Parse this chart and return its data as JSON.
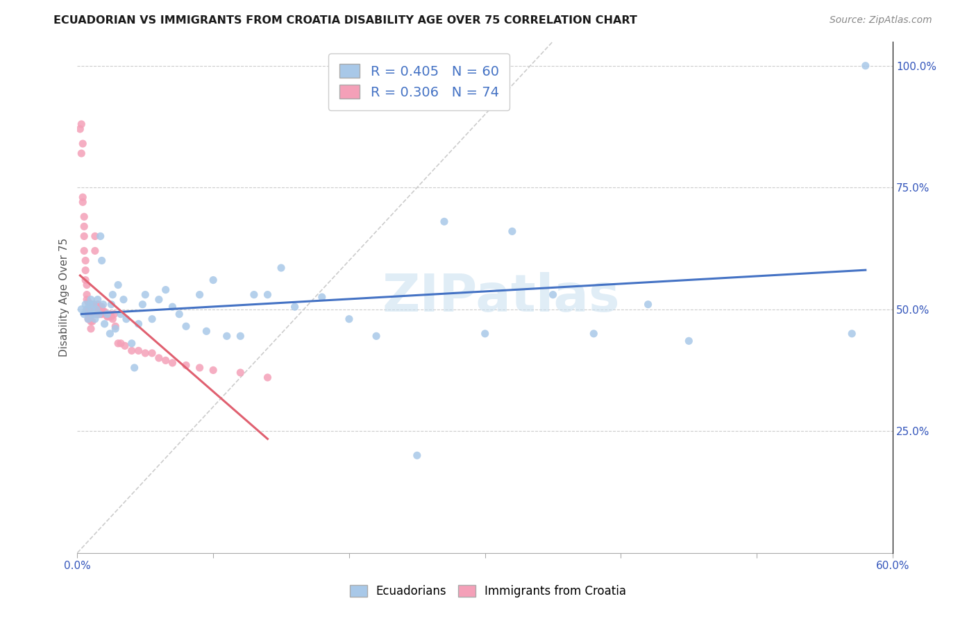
{
  "title": "ECUADORIAN VS IMMIGRANTS FROM CROATIA DISABILITY AGE OVER 75 CORRELATION CHART",
  "source": "Source: ZipAtlas.com",
  "ylabel": "Disability Age Over 75",
  "xlim": [
    0.0,
    0.6
  ],
  "ylim": [
    0.0,
    1.05
  ],
  "blue_R": 0.405,
  "blue_N": 60,
  "pink_R": 0.306,
  "pink_N": 74,
  "blue_color": "#a8c8e8",
  "pink_color": "#f4a0b8",
  "blue_trend_color": "#4472c4",
  "pink_trend_color": "#e06070",
  "diagonal_color": "#cccccc",
  "watermark": "ZIPatlas",
  "blue_scatter_x": [
    0.003,
    0.005,
    0.006,
    0.007,
    0.008,
    0.009,
    0.01,
    0.01,
    0.011,
    0.012,
    0.013,
    0.014,
    0.015,
    0.016,
    0.017,
    0.018,
    0.019,
    0.02,
    0.022,
    0.024,
    0.025,
    0.026,
    0.028,
    0.03,
    0.032,
    0.034,
    0.036,
    0.04,
    0.042,
    0.045,
    0.048,
    0.05,
    0.055,
    0.06,
    0.065,
    0.07,
    0.075,
    0.08,
    0.09,
    0.095,
    0.1,
    0.11,
    0.12,
    0.13,
    0.14,
    0.15,
    0.16,
    0.18,
    0.2,
    0.22,
    0.25,
    0.27,
    0.3,
    0.32,
    0.35,
    0.38,
    0.42,
    0.45,
    0.57,
    0.58
  ],
  "blue_scatter_y": [
    0.5,
    0.49,
    0.51,
    0.5,
    0.48,
    0.51,
    0.5,
    0.52,
    0.49,
    0.51,
    0.48,
    0.5,
    0.52,
    0.49,
    0.65,
    0.6,
    0.51,
    0.47,
    0.49,
    0.45,
    0.51,
    0.53,
    0.46,
    0.55,
    0.49,
    0.52,
    0.48,
    0.43,
    0.38,
    0.47,
    0.51,
    0.53,
    0.48,
    0.52,
    0.54,
    0.505,
    0.49,
    0.465,
    0.53,
    0.455,
    0.56,
    0.445,
    0.445,
    0.53,
    0.53,
    0.585,
    0.505,
    0.525,
    0.48,
    0.445,
    0.2,
    0.68,
    0.45,
    0.66,
    0.53,
    0.45,
    0.51,
    0.435,
    0.45,
    1.0
  ],
  "pink_scatter_x": [
    0.002,
    0.003,
    0.003,
    0.004,
    0.004,
    0.004,
    0.005,
    0.005,
    0.005,
    0.005,
    0.006,
    0.006,
    0.006,
    0.007,
    0.007,
    0.007,
    0.007,
    0.008,
    0.008,
    0.008,
    0.008,
    0.009,
    0.009,
    0.009,
    0.01,
    0.01,
    0.01,
    0.01,
    0.01,
    0.011,
    0.011,
    0.011,
    0.012,
    0.012,
    0.012,
    0.013,
    0.013,
    0.013,
    0.014,
    0.014,
    0.015,
    0.015,
    0.015,
    0.016,
    0.016,
    0.017,
    0.017,
    0.018,
    0.018,
    0.019,
    0.02,
    0.021,
    0.022,
    0.023,
    0.024,
    0.025,
    0.026,
    0.027,
    0.028,
    0.03,
    0.032,
    0.035,
    0.04,
    0.045,
    0.05,
    0.055,
    0.06,
    0.065,
    0.07,
    0.08,
    0.09,
    0.1,
    0.12,
    0.14
  ],
  "pink_scatter_y": [
    0.87,
    0.88,
    0.82,
    0.73,
    0.72,
    0.84,
    0.69,
    0.67,
    0.65,
    0.62,
    0.6,
    0.58,
    0.56,
    0.55,
    0.53,
    0.52,
    0.5,
    0.515,
    0.5,
    0.49,
    0.48,
    0.51,
    0.495,
    0.48,
    0.51,
    0.5,
    0.49,
    0.475,
    0.46,
    0.505,
    0.49,
    0.475,
    0.51,
    0.5,
    0.49,
    0.65,
    0.62,
    0.5,
    0.505,
    0.49,
    0.51,
    0.5,
    0.49,
    0.505,
    0.49,
    0.505,
    0.49,
    0.505,
    0.49,
    0.495,
    0.495,
    0.49,
    0.485,
    0.485,
    0.49,
    0.485,
    0.48,
    0.49,
    0.465,
    0.43,
    0.43,
    0.425,
    0.415,
    0.415,
    0.41,
    0.41,
    0.4,
    0.395,
    0.39,
    0.385,
    0.38,
    0.375,
    0.37,
    0.36
  ]
}
